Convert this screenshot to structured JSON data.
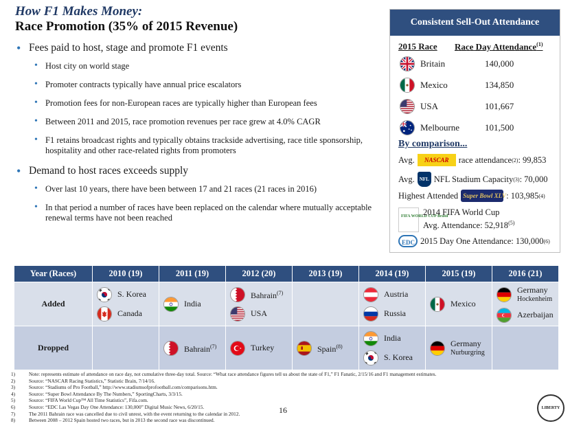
{
  "title": {
    "line1": "How F1 Makes Money:",
    "line2": "Race Promotion (35% of 2015 Revenue)"
  },
  "bullets": [
    {
      "text": "Fees paid to host, stage and promote F1 events",
      "subs": [
        "Host city on world stage",
        "Promoter contracts typically have annual price escalators",
        "Promotion fees for non-European races are typically higher than European fees",
        "Between 2011 and 2015, race promotion revenues per race grew at 4.0% CAGR",
        "F1 retains broadcast rights and typically obtains trackside advertising, race title sponsorship, hospitality and other race-related rights from promoters"
      ]
    },
    {
      "text": "Demand to host races exceeds supply",
      "subs": [
        "Over last 10 years, there have been between 17 and 21 races (21 races in 2016)",
        "In that period a number of races have been replaced on the calendar where mutually acceptable renewal terms have not been reached"
      ]
    }
  ],
  "panel": {
    "heading": "Consistent Sell-Out Attendance",
    "col1": "2015 Race",
    "col2": "Race Day Attendance",
    "col2_note": "(1)",
    "races": [
      {
        "name": "Britain",
        "value": "140,000",
        "flag": "uk-flag"
      },
      {
        "name": "Mexico",
        "value": "134,850",
        "flag": "mexico-flag"
      },
      {
        "name": "USA",
        "value": "101,667",
        "flag": "usa-flag"
      },
      {
        "name": "Melbourne",
        "value": "101,500",
        "flag": "australia-flag"
      }
    ],
    "by_comparison": "By comparison...",
    "nascar": {
      "pre": "Avg.",
      "logo": "NASCAR",
      "post": "race attendance",
      "note": "(2)",
      "value": ": 99,853"
    },
    "nfl": {
      "pre": "Avg.",
      "logo": "NFL",
      "post": "NFL Stadium Capacity",
      "note": "(3)",
      "value": ": 70,000"
    },
    "superbowl": {
      "pre": "Highest Attended",
      "logo": "Super Bowl XLV",
      "value": ": 103,985",
      "note": "(4)"
    },
    "fifa": {
      "line1": "2014 FIFA World Cup",
      "line2": "Avg. Attendance: 52,918",
      "note": "(5)",
      "logo": "FIFA WORLD CUP Brasil"
    },
    "edc": {
      "text": "2015 Day One Attendance: 130,000",
      "note": "(6)",
      "logo": "EDC"
    }
  },
  "table": {
    "headers": [
      "Year (Races)",
      "2010 (19)",
      "2011 (19)",
      "2012 (20)",
      "2013 (19)",
      "2014 (19)",
      "2015 (19)",
      "2016 (21)"
    ],
    "added_label": "Added",
    "dropped_label": "Dropped",
    "added": [
      [
        {
          "name": "S. Korea",
          "flag": "south-korea-flag"
        },
        {
          "name": "Canada",
          "flag": "canada-flag"
        }
      ],
      [
        {
          "name": "India",
          "flag": "india-flag"
        }
      ],
      [
        {
          "name": "Bahrain",
          "note": "(7)",
          "flag": "bahrain-flag"
        },
        {
          "name": "USA",
          "flag": "usa-flag"
        }
      ],
      [],
      [
        {
          "name": "Austria",
          "flag": "austria-flag"
        },
        {
          "name": "Russia",
          "flag": "russia-flag"
        }
      ],
      [
        {
          "name": "Mexico",
          "flag": "mexico-flag"
        }
      ],
      [
        {
          "name": "Germany",
          "sub": "Hockenheim",
          "flag": "germany-flag"
        },
        {
          "name": "Azerbaijan",
          "flag": "azerbaijan-flag"
        }
      ]
    ],
    "dropped": [
      [],
      [
        {
          "name": "Bahrain",
          "note": "(7)",
          "flag": "bahrain-flag"
        }
      ],
      [
        {
          "name": "Turkey",
          "flag": "turkey-flag"
        }
      ],
      [
        {
          "name": "Spain",
          "note": "(8)",
          "flag": "spain-flag"
        }
      ],
      [
        {
          "name": "India",
          "flag": "india-flag"
        },
        {
          "name": "S. Korea",
          "flag": "south-korea-flag"
        }
      ],
      [
        {
          "name": "Germany",
          "sub": "Nurburgring",
          "flag": "germany-flag"
        }
      ],
      []
    ]
  },
  "notes": [
    {
      "num": "1)",
      "text": "Note: represents estimate of attendance on race day, not cumulative three-day total. Source: “What race attendance figures tell us about the state of F1,” F1 Fanatic, 2/15/16 and F1 management estimates."
    },
    {
      "num": "2)",
      "text": "Source: “NASCAR Racing Statistics,” Statistic Brain, 7/14/16."
    },
    {
      "num": "3)",
      "text": "Source: “Stadiums of Pro Football,” http://www.stadiumsofprofootball.com/comparisons.htm."
    },
    {
      "num": "4)",
      "text": "Source: “Super Bowl Attendance By The Numbers,” SportingCharts, 3/3/15."
    },
    {
      "num": "5)",
      "text": "Source: “FIFA World Cup™ All Time Statistics”, Fifa.com."
    },
    {
      "num": "6)",
      "text": "Source: “EDC Las Vegas Day One Attendance: 130,000” Digital Music News, 6/20/15."
    },
    {
      "num": "7)",
      "text": "The 2011 Bahrain race was cancelled due to civil unrest, with the event returning to the calendar in 2012."
    },
    {
      "num": "8)",
      "text": "Between 2008 – 2012 Spain hosted two races, but in 2013 the second race was discontinued."
    }
  ],
  "page_number": "16",
  "badge": "LIBERTY",
  "colors": {
    "navy": "#2f4f7f",
    "title_blue": "#1f3864",
    "bullet_blue": "#2e75b6"
  }
}
